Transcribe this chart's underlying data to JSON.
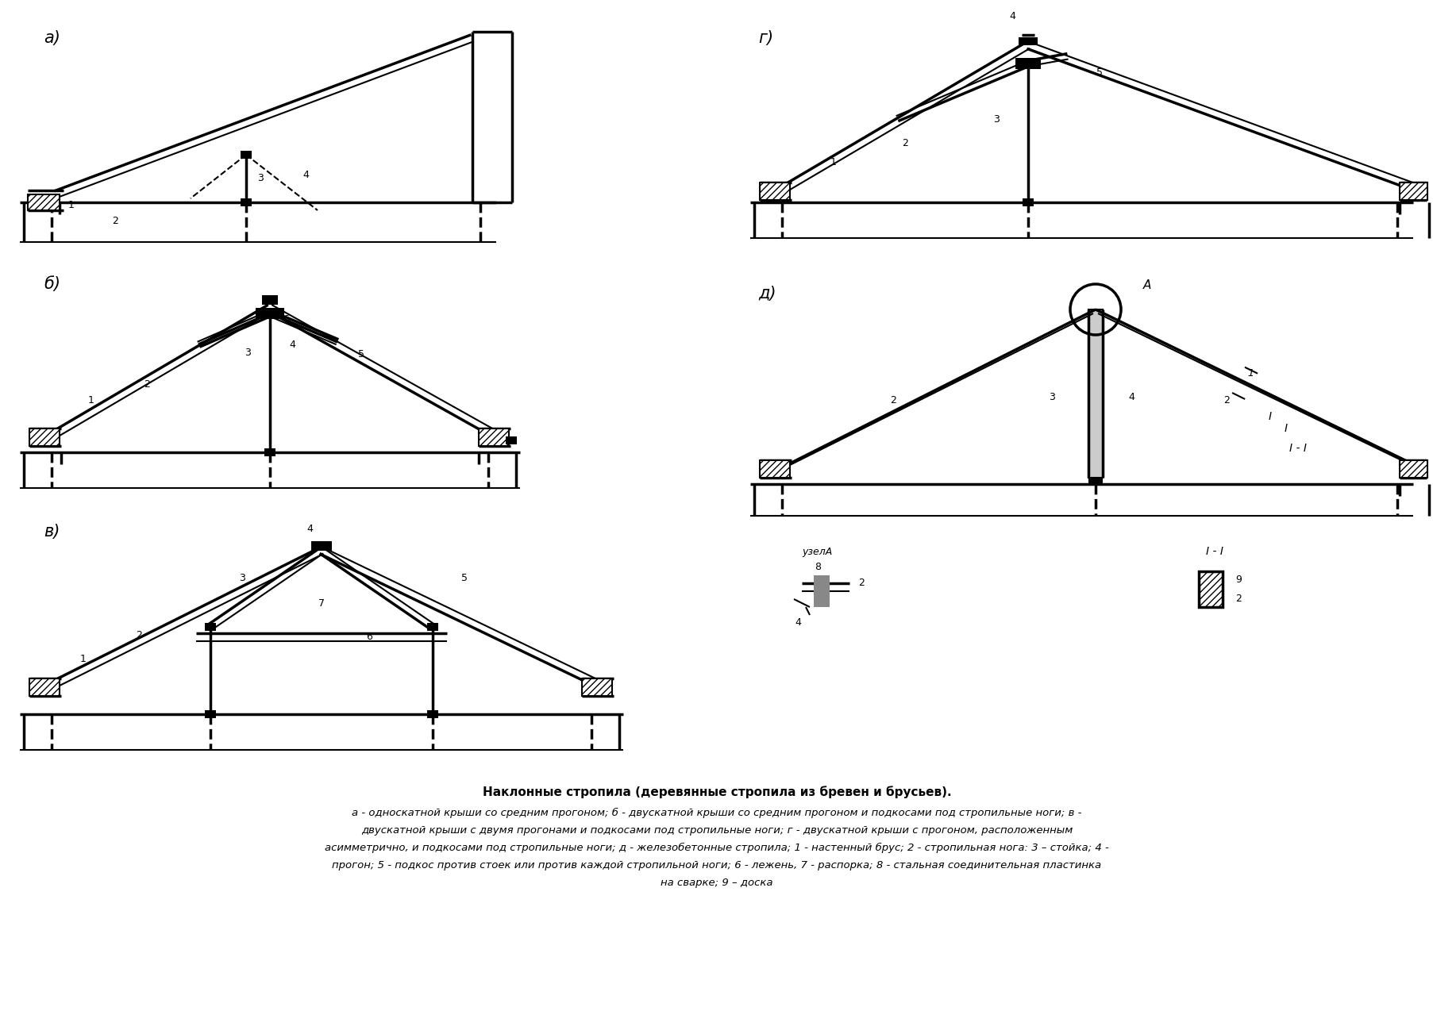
{
  "title": "Наклонные стропила (деревянные стропила из бревен и брусьев).",
  "caption_lines": [
    "а - односкатной крыши со средним прогоном; б - двускатной крыши со средним прогоном и подкосами под стропильные ноги; в -",
    "двускатной крыши с двумя прогонами и подкосами под стропильные ноги; г - двускатной крыши с прогоном, расположенным",
    "асимметрично, и подкосами под стропильные ноги; д - железобетонные стропила; 1 - настенный брус; 2 - стропильная нога: 3 – стойка; 4 -",
    "прогон; 5 - подкос против стоек или против каждой стропильной ноги; 6 - лежень, 7 - распорка; 8 - стальная соединительная пластинка",
    "на сварке; 9 – доска"
  ],
  "bg_color": "#ffffff",
  "lc": "#000000"
}
